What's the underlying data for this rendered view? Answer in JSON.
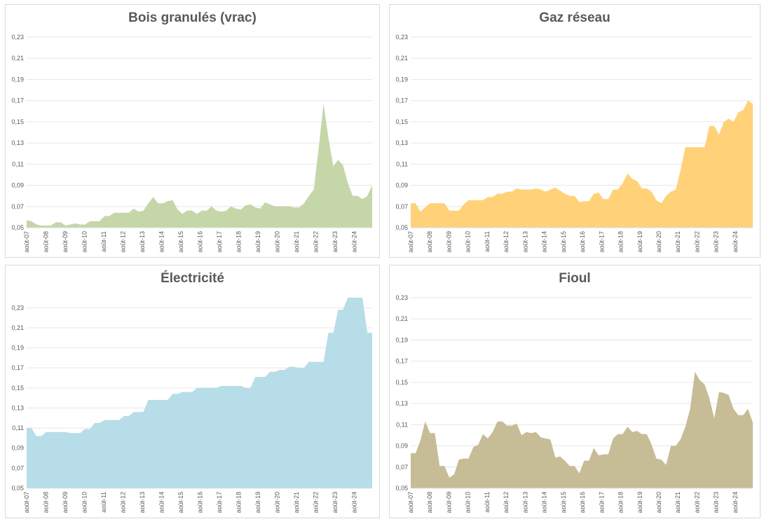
{
  "chart_data": [
    {
      "type": "area",
      "title": "Bois granulés (vrac)",
      "color": "#c5d6a8",
      "ylim": [
        0.05,
        0.23
      ],
      "yticks": [
        "0,05",
        "0,07",
        "0,09",
        "0,11",
        "0,13",
        "0,15",
        "0,17",
        "0,19",
        "0,21",
        "0,23"
      ],
      "xticks": [
        "août-07",
        "août-08",
        "août-09",
        "août-10",
        "août-11",
        "août-12",
        "août-13",
        "août-14",
        "août-15",
        "août-16",
        "août-17",
        "août-18",
        "août-19",
        "août-20",
        "août-21",
        "août-22",
        "août-23",
        "août-24"
      ],
      "grid": true,
      "x_start": 2007.58,
      "x_end": 2025.5,
      "values": [
        0.057,
        0.056,
        0.053,
        0.052,
        0.052,
        0.052,
        0.055,
        0.055,
        0.052,
        0.053,
        0.054,
        0.053,
        0.053,
        0.056,
        0.056,
        0.056,
        0.061,
        0.061,
        0.064,
        0.064,
        0.064,
        0.064,
        0.068,
        0.065,
        0.066,
        0.073,
        0.079,
        0.073,
        0.073,
        0.075,
        0.076,
        0.067,
        0.063,
        0.066,
        0.066,
        0.063,
        0.066,
        0.066,
        0.07,
        0.066,
        0.065,
        0.066,
        0.07,
        0.068,
        0.067,
        0.071,
        0.072,
        0.069,
        0.068,
        0.074,
        0.072,
        0.07,
        0.07,
        0.07,
        0.07,
        0.069,
        0.069,
        0.073,
        0.08,
        0.086,
        0.125,
        0.167,
        0.135,
        0.108,
        0.114,
        0.109,
        0.092,
        0.08,
        0.08,
        0.077,
        0.08,
        0.09
      ]
    },
    {
      "type": "area",
      "title": "Gaz réseau",
      "color": "#ffd27a",
      "ylim": [
        0.05,
        0.23
      ],
      "yticks": [
        "0,05",
        "0,07",
        "0,09",
        "0,11",
        "0,13",
        "0,15",
        "0,17",
        "0,19",
        "0,21",
        "0,23"
      ],
      "xticks": [
        "août-07",
        "août-08",
        "août-09",
        "août-10",
        "août-11",
        "août-12",
        "août-13",
        "août-14",
        "août-15",
        "août-16",
        "août-17",
        "août-18",
        "août-19",
        "août-20",
        "août-21",
        "août-22",
        "août-23",
        "août-24"
      ],
      "grid": true,
      "x_start": 2007.58,
      "x_end": 2025.5,
      "values": [
        0.073,
        0.073,
        0.065,
        0.069,
        0.073,
        0.073,
        0.073,
        0.073,
        0.066,
        0.066,
        0.066,
        0.072,
        0.076,
        0.076,
        0.076,
        0.076,
        0.079,
        0.079,
        0.082,
        0.082,
        0.084,
        0.084,
        0.087,
        0.086,
        0.086,
        0.086,
        0.087,
        0.086,
        0.084,
        0.086,
        0.088,
        0.085,
        0.082,
        0.08,
        0.08,
        0.074,
        0.075,
        0.075,
        0.082,
        0.083,
        0.077,
        0.077,
        0.086,
        0.086,
        0.092,
        0.101,
        0.096,
        0.094,
        0.087,
        0.087,
        0.084,
        0.076,
        0.073,
        0.08,
        0.084,
        0.086,
        0.104,
        0.126,
        0.126,
        0.126,
        0.126,
        0.126,
        0.146,
        0.146,
        0.138,
        0.15,
        0.153,
        0.15,
        0.159,
        0.161,
        0.17,
        0.167
      ]
    },
    {
      "type": "area",
      "title": "Électricité",
      "color": "#b7dde8",
      "ylim": [
        0.05,
        0.24
      ],
      "yticks": [
        "0,05",
        "0,07",
        "0,09",
        "0,11",
        "0,13",
        "0,15",
        "0,17",
        "0,19",
        "0,21",
        "0,23"
      ],
      "xticks": [
        "août-07",
        "août-08",
        "août-09",
        "août-10",
        "août-11",
        "août-12",
        "août-13",
        "août-14",
        "août-15",
        "août-16",
        "août-17",
        "août-18",
        "août-19",
        "août-20",
        "août-21",
        "août-22",
        "août-23",
        "août-24"
      ],
      "grid": true,
      "x_start": 2007.58,
      "x_end": 2025.5,
      "values": [
        0.11,
        0.11,
        0.102,
        0.102,
        0.106,
        0.106,
        0.106,
        0.106,
        0.106,
        0.105,
        0.105,
        0.105,
        0.109,
        0.109,
        0.115,
        0.115,
        0.118,
        0.118,
        0.118,
        0.118,
        0.122,
        0.122,
        0.126,
        0.126,
        0.126,
        0.138,
        0.138,
        0.138,
        0.138,
        0.138,
        0.144,
        0.144,
        0.146,
        0.146,
        0.146,
        0.15,
        0.15,
        0.15,
        0.15,
        0.15,
        0.152,
        0.152,
        0.152,
        0.152,
        0.152,
        0.15,
        0.15,
        0.161,
        0.161,
        0.161,
        0.166,
        0.166,
        0.168,
        0.168,
        0.171,
        0.171,
        0.17,
        0.17,
        0.176,
        0.176,
        0.176,
        0.176,
        0.205,
        0.205,
        0.228,
        0.228,
        0.24,
        0.24,
        0.24,
        0.24,
        0.205,
        0.205
      ]
    },
    {
      "type": "area",
      "title": "Fioul",
      "color": "#c6bc96",
      "ylim": [
        0.05,
        0.23
      ],
      "yticks": [
        "0,05",
        "0,07",
        "0,09",
        "0,11",
        "0,13",
        "0,15",
        "0,17",
        "0,19",
        "0,21",
        "0,23"
      ],
      "xticks": [
        "août-07",
        "août-08",
        "août-09",
        "août-10",
        "août-11",
        "août-12",
        "août-13",
        "août-14",
        "août-15",
        "août-16",
        "août-17",
        "août-18",
        "août-19",
        "août-20",
        "août-21",
        "août-22",
        "août-23",
        "août-24"
      ],
      "grid": true,
      "x_start": 2007.58,
      "x_end": 2025.5,
      "values": [
        0.083,
        0.083,
        0.095,
        0.113,
        0.102,
        0.102,
        0.071,
        0.071,
        0.06,
        0.063,
        0.077,
        0.078,
        0.078,
        0.089,
        0.091,
        0.101,
        0.097,
        0.103,
        0.113,
        0.113,
        0.109,
        0.109,
        0.111,
        0.1,
        0.103,
        0.102,
        0.103,
        0.098,
        0.097,
        0.096,
        0.079,
        0.08,
        0.076,
        0.071,
        0.071,
        0.064,
        0.076,
        0.076,
        0.088,
        0.081,
        0.082,
        0.082,
        0.097,
        0.101,
        0.101,
        0.108,
        0.103,
        0.104,
        0.101,
        0.101,
        0.091,
        0.078,
        0.077,
        0.072,
        0.09,
        0.09,
        0.096,
        0.108,
        0.125,
        0.16,
        0.152,
        0.148,
        0.135,
        0.116,
        0.141,
        0.14,
        0.138,
        0.125,
        0.119,
        0.119,
        0.125,
        0.112
      ]
    }
  ]
}
